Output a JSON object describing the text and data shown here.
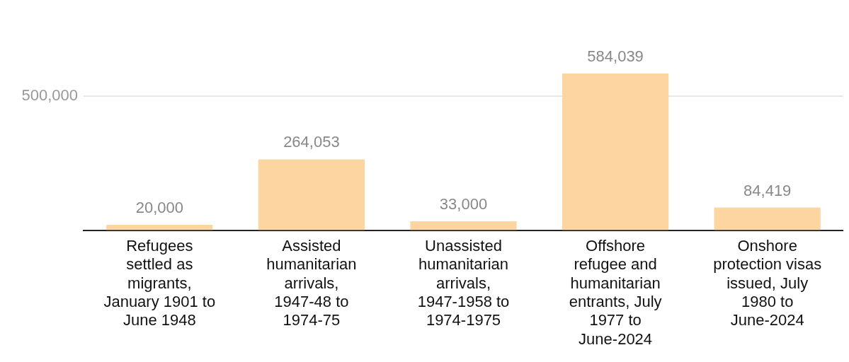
{
  "chart_data": {
    "type": "bar",
    "categories": [
      "Refugees settled as migrants, January 1901 to June 1948",
      "Assisted humanitarian arrivals, 1947-48 to 1974-75",
      "Unassisted humanitarian arrivals, 1947-1958 to 1974-1975",
      "Offshore refugee and humanitarian entrants, July 1977 to June-2024",
      "Onshore protection visas issued, July 1980 to June-2024"
    ],
    "values": [
      20000,
      264053,
      33000,
      584039,
      84419
    ],
    "color": "#fdd5a0",
    "ref_lines": [
      {
        "axis": "y",
        "value": 500000,
        "label": "500,000",
        "color": "#e0e0e0"
      }
    ],
    "value_labels": [
      "20,000",
      "264,053",
      "33,000",
      "584,039",
      "84,419"
    ]
  }
}
